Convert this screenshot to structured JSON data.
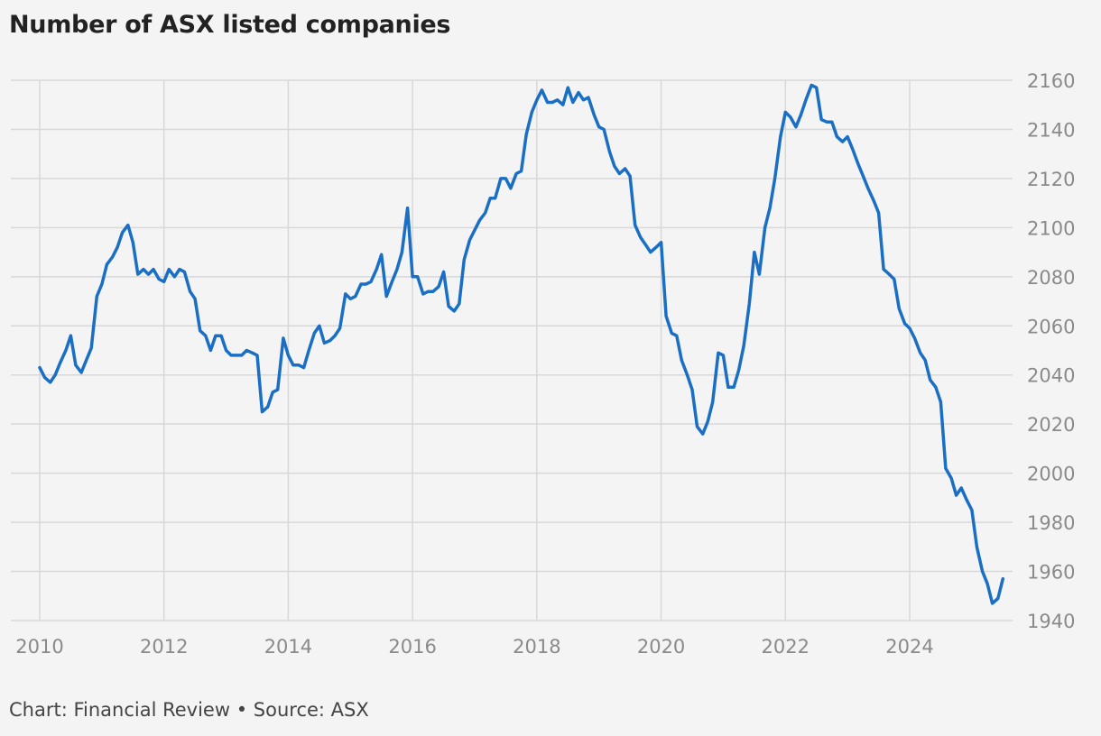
{
  "title": "Number of ASX listed companies",
  "footer": {
    "credit": "Chart: Financial Review",
    "separator": "•",
    "source": "Source: ASX"
  },
  "colors": {
    "line": "#1a6fc4",
    "grid": "#d8d8d8",
    "background": "#f4f4f4",
    "tick_text": "#8a8a8a"
  },
  "chart_data": {
    "type": "line",
    "title": "Number of ASX listed companies",
    "xlabel": "",
    "ylabel": "",
    "xlim": [
      2010.0,
      2025.75
    ],
    "ylim": [
      1940,
      2160
    ],
    "x_ticks": [
      2010,
      2012,
      2014,
      2016,
      2018,
      2020,
      2022,
      2024
    ],
    "y_ticks": [
      1940,
      1960,
      1980,
      2000,
      2020,
      2040,
      2060,
      2080,
      2100,
      2120,
      2140,
      2160
    ],
    "y_axis_position": "right",
    "grid": true,
    "legend": "none",
    "series": [
      {
        "x": [
          2010.0,
          2010.08,
          2010.17,
          2010.25,
          2010.33,
          2010.42,
          2010.5,
          2010.58,
          2010.67,
          2010.75,
          2010.83,
          2010.92,
          2011.0,
          2011.08,
          2011.17,
          2011.25,
          2011.33,
          2011.42,
          2011.5,
          2011.58,
          2011.67,
          2011.75,
          2011.83,
          2011.92,
          2012.0,
          2012.08,
          2012.17,
          2012.25,
          2012.33,
          2012.42,
          2012.5,
          2012.58,
          2012.67,
          2012.75,
          2012.83,
          2012.92,
          2013.0,
          2013.08,
          2013.17,
          2013.25,
          2013.33,
          2013.42,
          2013.5,
          2013.58,
          2013.67,
          2013.75,
          2013.83,
          2013.92,
          2014.0,
          2014.08,
          2014.17,
          2014.25,
          2014.33,
          2014.42,
          2014.5,
          2014.58,
          2014.67,
          2014.75,
          2014.83,
          2014.92,
          2015.0,
          2015.08,
          2015.17,
          2015.25,
          2015.33,
          2015.42,
          2015.5,
          2015.58,
          2015.67,
          2015.75,
          2015.83,
          2015.92,
          2016.0,
          2016.08,
          2016.17,
          2016.25,
          2016.33,
          2016.42,
          2016.5,
          2016.58,
          2016.67,
          2016.75,
          2016.83,
          2016.92,
          2017.0,
          2017.08,
          2017.17,
          2017.25,
          2017.33,
          2017.42,
          2017.5,
          2017.58,
          2017.67,
          2017.75,
          2017.83,
          2017.92,
          2018.0,
          2018.08,
          2018.17,
          2018.25,
          2018.33,
          2018.42,
          2018.5,
          2018.58,
          2018.67,
          2018.75,
          2018.83,
          2018.92,
          2019.0,
          2019.08,
          2019.17,
          2019.25,
          2019.33,
          2019.42,
          2019.5,
          2019.58,
          2019.67,
          2019.75,
          2019.83,
          2019.92,
          2020.0,
          2020.08,
          2020.17,
          2020.25,
          2020.33,
          2020.42,
          2020.5,
          2020.58,
          2020.67,
          2020.75,
          2020.83,
          2020.92,
          2021.0,
          2021.08,
          2021.17,
          2021.25,
          2021.33,
          2021.42,
          2021.5,
          2021.58,
          2021.67,
          2021.75,
          2021.83,
          2021.92,
          2022.0,
          2022.08,
          2022.17,
          2022.25,
          2022.33,
          2022.42,
          2022.5,
          2022.58,
          2022.67,
          2022.75,
          2022.83,
          2022.92,
          2023.0,
          2023.08,
          2023.17,
          2023.25,
          2023.33,
          2023.42,
          2023.5,
          2023.58,
          2023.67,
          2023.75,
          2023.83,
          2023.92,
          2024.0,
          2024.08,
          2024.17,
          2024.25,
          2024.33,
          2024.42,
          2024.5,
          2024.58,
          2024.67,
          2024.75,
          2024.83,
          2024.92,
          2025.0,
          2025.08,
          2025.17,
          2025.25,
          2025.33,
          2025.42,
          2025.5
        ],
        "values": [
          2043,
          2039,
          2037,
          2040,
          2045,
          2050,
          2056,
          2044,
          2041,
          2046,
          2051,
          2072,
          2077,
          2085,
          2088,
          2092,
          2098,
          2101,
          2094,
          2081,
          2083,
          2081,
          2083,
          2079,
          2078,
          2083,
          2080,
          2083,
          2082,
          2074,
          2071,
          2058,
          2056,
          2050,
          2056,
          2056,
          2050,
          2048,
          2048,
          2048,
          2050,
          2049,
          2048,
          2025,
          2027,
          2033,
          2034,
          2055,
          2048,
          2044,
          2044,
          2043,
          2050,
          2057,
          2060,
          2053,
          2054,
          2056,
          2059,
          2073,
          2071,
          2072,
          2077,
          2077,
          2078,
          2083,
          2089,
          2072,
          2078,
          2083,
          2090,
          2108,
          2080,
          2080,
          2073,
          2074,
          2074,
          2076,
          2082,
          2068,
          2066,
          2069,
          2087,
          2095,
          2099,
          2103,
          2106,
          2112,
          2112,
          2120,
          2120,
          2116,
          2122,
          2123,
          2138,
          2147,
          2152,
          2156,
          2151,
          2151,
          2152,
          2150,
          2157,
          2151,
          2155,
          2152,
          2153,
          2146,
          2141,
          2140,
          2131,
          2125,
          2122,
          2124,
          2121,
          2101,
          2096,
          2093,
          2090,
          2092,
          2094,
          2064,
          2057,
          2056,
          2046,
          2040,
          2034,
          2019,
          2016,
          2021,
          2029,
          2049,
          2048,
          2035,
          2035,
          2042,
          2052,
          2069,
          2090,
          2081,
          2100,
          2108,
          2120,
          2137,
          2147,
          2145,
          2141,
          2146,
          2152,
          2158,
          2157,
          2144,
          2143,
          2143,
          2137,
          2135,
          2137,
          2132,
          2126,
          2121,
          2116,
          2111,
          2106,
          2083,
          2081,
          2079,
          2067,
          2061,
          2059,
          2055,
          2049,
          2046,
          2038,
          2035,
          2029,
          2002,
          1998,
          1991,
          1994,
          1989,
          1985,
          1970,
          1960,
          1955,
          1947,
          1949,
          1957
        ]
      }
    ]
  }
}
